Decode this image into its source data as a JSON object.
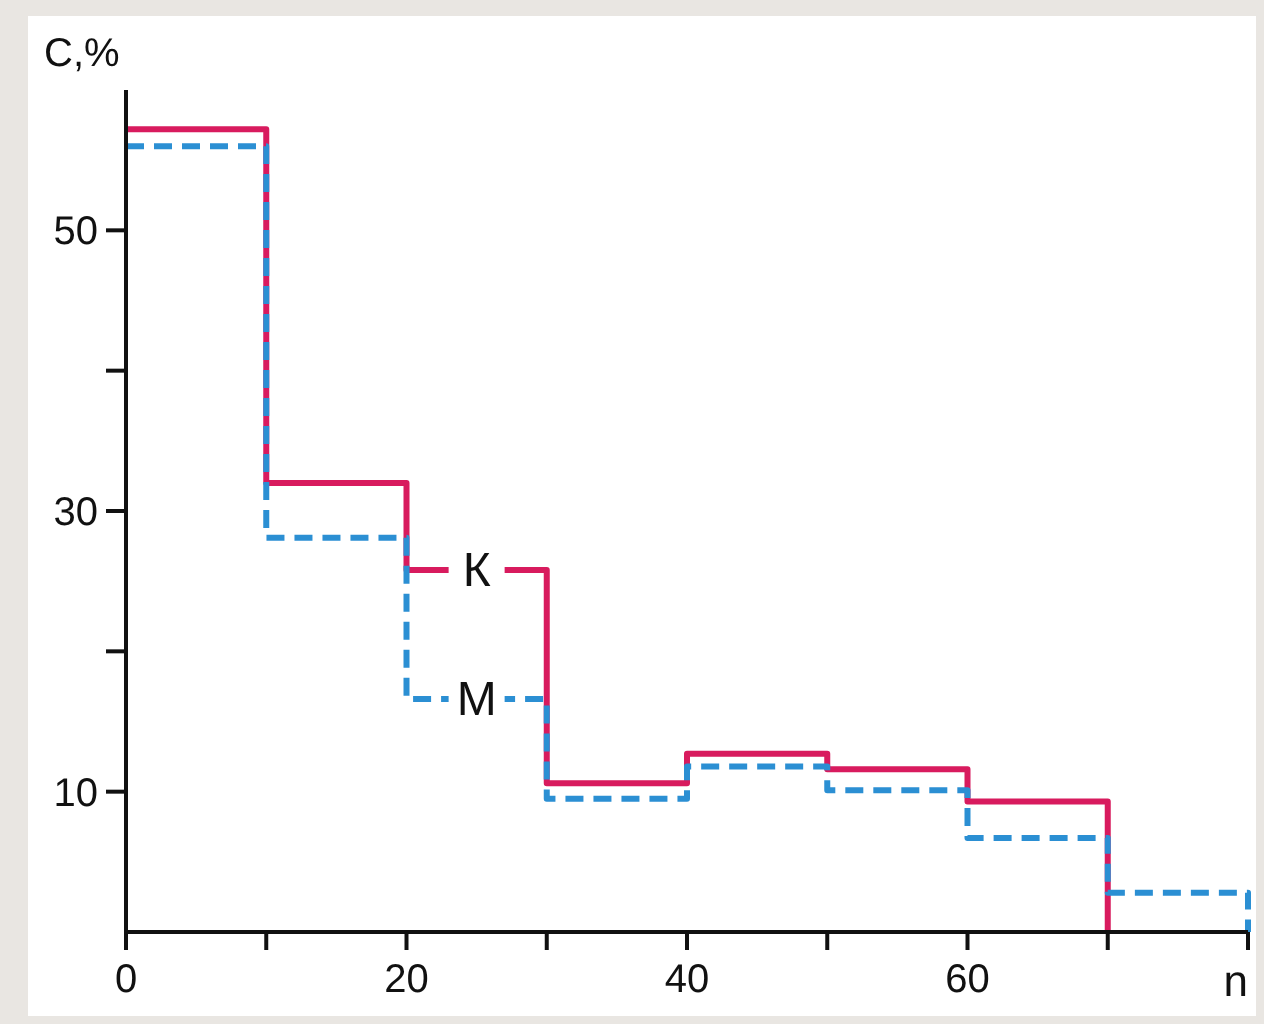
{
  "chart_data": {
    "type": "step",
    "ylabel": "С,%",
    "xlabel": "n",
    "xlim": [
      0,
      80
    ],
    "ylim": [
      0,
      60
    ],
    "xticks": [
      0,
      {
        "value": 10,
        "label": null
      },
      20,
      {
        "value": 30,
        "label": null
      },
      40,
      {
        "value": 50,
        "label": null
      },
      60,
      {
        "value": 70,
        "label": null
      },
      {
        "value": 80,
        "label": null
      }
    ],
    "yticks": [
      10,
      {
        "value": 20,
        "label": null
      },
      30,
      {
        "value": 40,
        "label": null
      },
      50
    ],
    "grid": false,
    "series": [
      {
        "name": "К",
        "color": "#d81b5e",
        "line_style": "solid",
        "x": [
          0,
          10,
          20,
          30,
          40,
          50,
          60,
          70
        ],
        "values": [
          57.2,
          32,
          25.8,
          10.6,
          12.7,
          11.6,
          9.3,
          0
        ]
      },
      {
        "name": "М",
        "color": "#2b8fd3",
        "line_style": "dashed",
        "x": [
          0,
          10,
          20,
          30,
          40,
          50,
          60,
          70,
          80
        ],
        "values": [
          56,
          28.1,
          16.6,
          9.5,
          11.8,
          10.1,
          6.7,
          2.8,
          0
        ]
      }
    ]
  }
}
